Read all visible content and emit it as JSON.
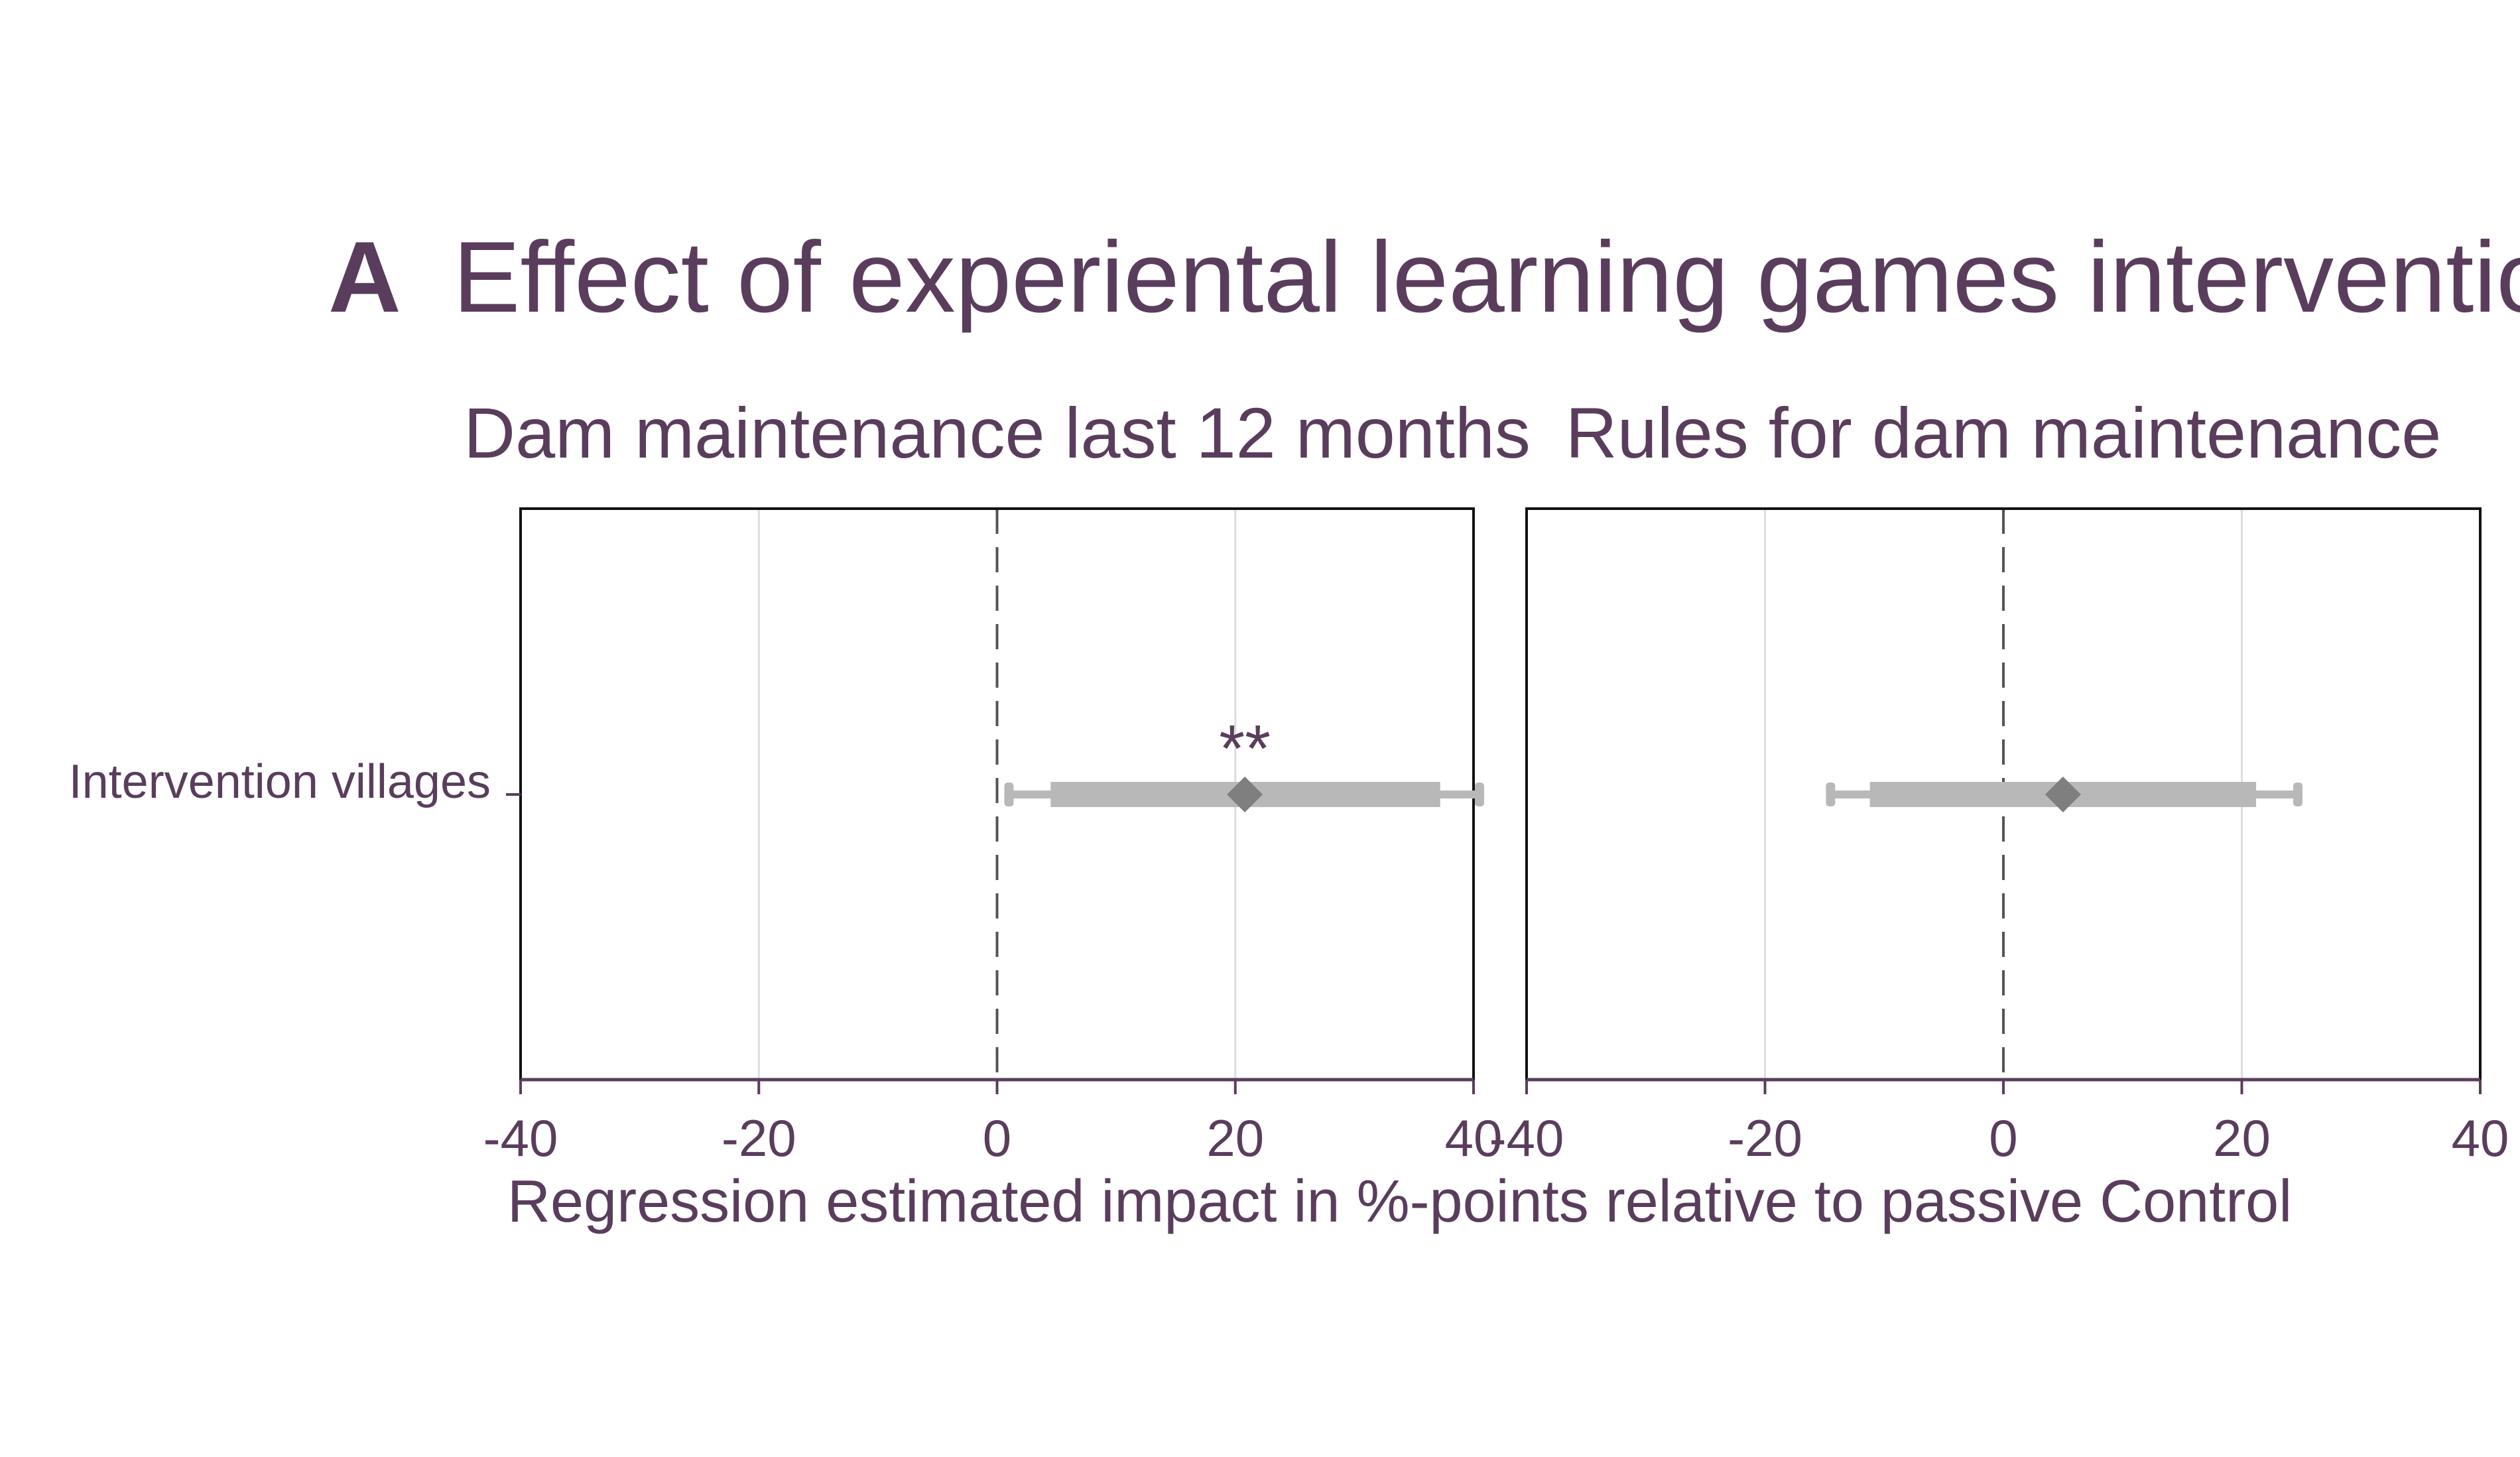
{
  "figure": {
    "panel_letter": "A",
    "title": "Effect of experiental learning games intervention",
    "xlabel": "Regression estimated impact in %-points relative to passive Control",
    "text_color": "#5a3d5c",
    "ci_color": "#b8b8b8",
    "marker_color": "#7f7f7f",
    "refline_color": "#555555",
    "grid_color": "#dddddd"
  },
  "chart_data": [
    {
      "type": "scatter",
      "subtitle": "Dam maintenance last 12 months",
      "categories": [
        "Intervention villages"
      ],
      "xlim": [
        -40,
        40
      ],
      "xticks": [
        "-40",
        "-20",
        "0",
        "20",
        "40"
      ],
      "grid": true,
      "reference_line": 0,
      "series": [
        {
          "estimate": [
            20.8
          ],
          "ci90": [
            [
              4.5,
              37.2
            ]
          ],
          "ci95": [
            [
              1.0,
              40.5
            ]
          ],
          "significance": [
            "**"
          ]
        }
      ]
    },
    {
      "type": "scatter",
      "subtitle": "Rules for dam maintenance",
      "categories": [
        "Intervention villages"
      ],
      "xlim": [
        -40,
        40
      ],
      "xticks": [
        "-40",
        "-20",
        "0",
        "20",
        "40"
      ],
      "grid": true,
      "reference_line": 0,
      "series": [
        {
          "estimate": [
            5.0
          ],
          "ci90": [
            [
              -11.2,
              21.2
            ]
          ],
          "ci95": [
            [
              -14.5,
              24.7
            ]
          ],
          "significance": [
            ""
          ]
        }
      ]
    }
  ]
}
